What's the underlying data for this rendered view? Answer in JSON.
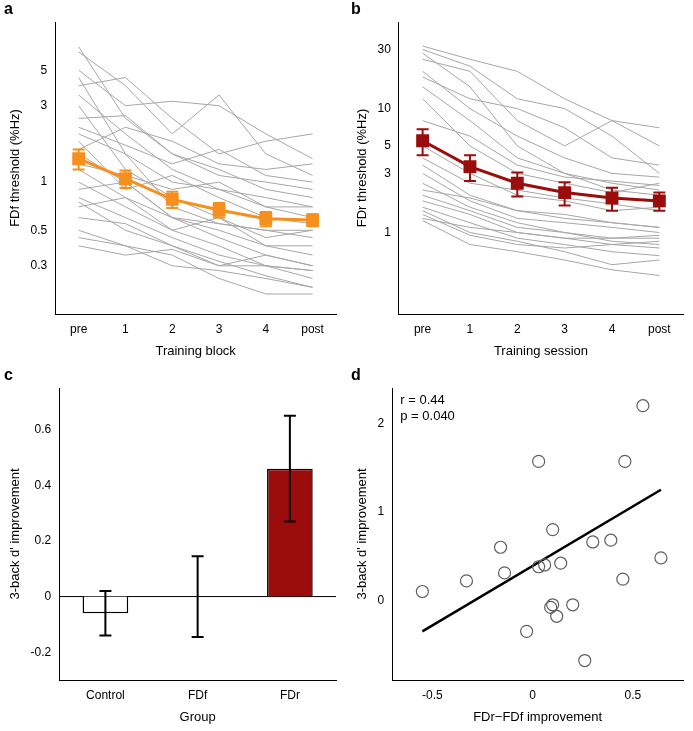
{
  "chart_data": [
    {
      "panel_label": "a",
      "type": "line",
      "x_label": "Training block",
      "y_label": "FDf threshold (%Hz)",
      "categories": [
        "pre",
        "1",
        "2",
        "3",
        "4",
        "post"
      ],
      "log": "y",
      "grid": false,
      "ylim": [
        0.15,
        10
      ],
      "yticks": [
        0.3,
        0.5,
        1,
        3,
        5
      ],
      "series": [
        {
          "color": "#a6a6a6",
          "values": [
            7.0,
            2.5,
            1.5,
            1.2,
            0.9,
            0.8
          ]
        },
        {
          "color": "#a6a6a6",
          "values": [
            6.5,
            4.0,
            2.0,
            3.5,
            1.5,
            1.1
          ]
        },
        {
          "color": "#a6a6a6",
          "values": [
            5.0,
            3.0,
            3.2,
            3.0,
            2.0,
            1.4
          ]
        },
        {
          "color": "#a6a6a6",
          "values": [
            4.5,
            1.5,
            1.0,
            0.9,
            0.7,
            0.6
          ]
        },
        {
          "color": "#a6a6a6",
          "values": [
            4.0,
            4.5,
            2.5,
            1.5,
            1.8,
            2.0
          ]
        },
        {
          "color": "#a6a6a6",
          "values": [
            3.5,
            2.0,
            1.2,
            0.9,
            0.8,
            0.7
          ]
        },
        {
          "color": "#a6a6a6",
          "values": [
            3.0,
            1.2,
            0.8,
            0.6,
            0.45,
            0.5
          ]
        },
        {
          "color": "#a6a6a6",
          "values": [
            2.5,
            2.6,
            1.5,
            1.1,
            1.0,
            0.9
          ]
        },
        {
          "color": "#a6a6a6",
          "values": [
            2.2,
            1.7,
            1.3,
            1.6,
            1.1,
            1.0
          ]
        },
        {
          "color": "#a6a6a6",
          "values": [
            2.0,
            1.5,
            0.7,
            0.55,
            0.5,
            0.45
          ]
        },
        {
          "color": "#a6a6a6",
          "values": [
            1.8,
            0.9,
            1.1,
            0.8,
            0.6,
            0.55
          ]
        },
        {
          "color": "#a6a6a6",
          "values": [
            1.6,
            2.2,
            1.8,
            1.3,
            1.2,
            1.3
          ]
        },
        {
          "color": "#a6a6a6",
          "values": [
            1.5,
            1.0,
            0.6,
            0.5,
            0.4,
            0.35
          ]
        },
        {
          "color": "#a6a6a6",
          "values": [
            1.3,
            1.1,
            0.9,
            1.0,
            0.7,
            0.7
          ]
        },
        {
          "color": "#a6a6a6",
          "values": [
            1.2,
            0.8,
            0.6,
            0.45,
            0.35,
            0.3
          ]
        },
        {
          "color": "#a6a6a6",
          "values": [
            1.0,
            0.7,
            0.5,
            0.4,
            0.3,
            0.28
          ]
        },
        {
          "color": "#a6a6a6",
          "values": [
            0.9,
            1.0,
            0.6,
            0.55,
            0.5,
            0.5
          ]
        },
        {
          "color": "#a6a6a6",
          "values": [
            0.8,
            0.6,
            0.45,
            0.35,
            0.3,
            0.25
          ]
        },
        {
          "color": "#a6a6a6",
          "values": [
            0.75,
            0.5,
            0.4,
            0.32,
            0.26,
            0.22
          ]
        },
        {
          "color": "#a6a6a6",
          "values": [
            0.7,
            0.8,
            0.5,
            0.6,
            0.4,
            0.4
          ]
        },
        {
          "color": "#a6a6a6",
          "values": [
            0.6,
            0.55,
            0.4,
            0.3,
            0.35,
            0.3
          ]
        },
        {
          "color": "#a6a6a6",
          "values": [
            0.5,
            0.4,
            0.35,
            0.25,
            0.2,
            0.2
          ]
        },
        {
          "color": "#a6a6a6",
          "values": [
            0.45,
            0.4,
            0.3,
            0.28,
            0.25,
            0.22
          ]
        },
        {
          "color": "#a6a6a6",
          "values": [
            0.4,
            0.35,
            0.38,
            0.3,
            0.3,
            0.28
          ]
        },
        {
          "color": "#f5901e",
          "marker": "square",
          "values": [
            1.4,
            1.05,
            0.78,
            0.67,
            0.59,
            0.58
          ],
          "error": [
            0.2,
            0.13,
            0.09,
            0.07,
            0.06,
            0.05
          ]
        }
      ]
    },
    {
      "panel_label": "b",
      "type": "line",
      "x_label": "Training session",
      "y_label": "FDr threshold (%Hz)",
      "categories": [
        "pre",
        "1",
        "2",
        "3",
        "4",
        "post"
      ],
      "log": "y",
      "grid": false,
      "ylim": [
        0.22,
        50
      ],
      "yticks": [
        1,
        3,
        5,
        10,
        30
      ],
      "series": [
        {
          "color": "#a6a6a6",
          "values": [
            32,
            25,
            20,
            12,
            8,
            5
          ]
        },
        {
          "color": "#a6a6a6",
          "values": [
            30,
            22,
            12,
            10,
            6,
            3
          ]
        },
        {
          "color": "#a6a6a6",
          "values": [
            28,
            15,
            5,
            3,
            2.5,
            2.2
          ]
        },
        {
          "color": "#a6a6a6",
          "values": [
            25,
            20,
            8,
            5,
            8,
            7
          ]
        },
        {
          "color": "#a6a6a6",
          "values": [
            20,
            10,
            6,
            4,
            3,
            2.8
          ]
        },
        {
          "color": "#a6a6a6",
          "values": [
            18,
            12,
            10,
            7,
            4,
            3.5
          ]
        },
        {
          "color": "#a6a6a6",
          "values": [
            15,
            8,
            4,
            3,
            2.2,
            2
          ]
        },
        {
          "color": "#a6a6a6",
          "values": [
            12,
            5,
            3,
            2.5,
            2.1,
            2.5
          ]
        },
        {
          "color": "#a6a6a6",
          "values": [
            8,
            6,
            3.5,
            2.8,
            2.6,
            2.4
          ]
        },
        {
          "color": "#a6a6a6",
          "values": [
            5,
            3,
            2,
            1.8,
            1.5,
            1.6
          ]
        },
        {
          "color": "#a6a6a6",
          "values": [
            4,
            2.5,
            2.2,
            1.9,
            1.7,
            1.5
          ]
        },
        {
          "color": "#a6a6a6",
          "values": [
            3.5,
            2,
            1.5,
            1.4,
            1.2,
            1.1
          ]
        },
        {
          "color": "#a6a6a6",
          "values": [
            3,
            1.8,
            1.3,
            1.2,
            1.1,
            1.0
          ]
        },
        {
          "color": "#a6a6a6",
          "values": [
            2.5,
            1.6,
            1.2,
            1.0,
            0.9,
            0.95
          ]
        },
        {
          "color": "#a6a6a6",
          "values": [
            2.2,
            1.9,
            1.5,
            1.3,
            1.2,
            1.1
          ]
        },
        {
          "color": "#a6a6a6",
          "values": [
            2,
            1.5,
            1.1,
            1.0,
            0.85,
            0.8
          ]
        },
        {
          "color": "#a6a6a6",
          "values": [
            1.8,
            1.4,
            1.0,
            0.9,
            0.8,
            0.75
          ]
        },
        {
          "color": "#a6a6a6",
          "values": [
            1.6,
            1.2,
            0.9,
            0.8,
            0.7,
            0.65
          ]
        },
        {
          "color": "#a6a6a6",
          "values": [
            1.5,
            1.0,
            0.85,
            0.7,
            0.55,
            0.6
          ]
        },
        {
          "color": "#a6a6a6",
          "values": [
            1.4,
            0.95,
            0.8,
            0.75,
            0.8,
            0.85
          ]
        },
        {
          "color": "#a6a6a6",
          "values": [
            1.3,
            1.1,
            1.0,
            0.9,
            0.9,
            0.9
          ]
        },
        {
          "color": "#a6a6a6",
          "values": [
            1.25,
            0.8,
            0.7,
            0.6,
            0.5,
            0.45
          ]
        },
        {
          "color": "#9b0d0d",
          "marker": "square",
          "values": [
            5.5,
            3.4,
            2.5,
            2.1,
            1.9,
            1.8
          ],
          "error": [
            1.3,
            0.8,
            0.55,
            0.45,
            0.4,
            0.3
          ]
        }
      ]
    },
    {
      "panel_label": "c",
      "type": "bar",
      "x_label": "Group",
      "y_label": "3-back d' improvement",
      "categories": [
        "Control",
        "FDf",
        "FDr"
      ],
      "values": [
        -0.06,
        0.0,
        0.46
      ],
      "error": [
        0.08,
        0.145,
        0.19
      ],
      "colors": [
        "#ffffff",
        "#ffffff",
        "#9b0d0d"
      ],
      "grid": false,
      "ylim": [
        -0.3,
        0.75
      ],
      "yticks": [
        -0.2,
        0,
        0.2,
        0.4,
        0.6
      ]
    },
    {
      "panel_label": "d",
      "type": "scatter",
      "x_label": "FDr−FDf improvement",
      "y_label": "3-back d' improvement",
      "annotations": [
        "r = 0.44",
        "p = 0.040"
      ],
      "grid": false,
      "xlim": [
        -0.7,
        0.75
      ],
      "xticks": [
        -0.5,
        0,
        0.5
      ],
      "ylim": [
        -0.9,
        2.4
      ],
      "yticks": [
        0,
        1,
        2
      ],
      "series": [
        {
          "type": "scatter",
          "marker": "circle",
          "color": "#606060",
          "x": [
            -0.55,
            -0.33,
            -0.14,
            -0.16,
            -0.03,
            0.03,
            0.03,
            0.06,
            0.09,
            0.1,
            0.1,
            0.12,
            0.14,
            0.2,
            0.26,
            0.3,
            0.39,
            0.45,
            0.46,
            0.55,
            0.64
          ],
          "values": [
            0.1,
            0.22,
            0.31,
            0.6,
            -0.35,
            1.57,
            0.38,
            0.4,
            -0.08,
            0.8,
            -0.05,
            -0.18,
            0.42,
            -0.05,
            -0.68,
            0.66,
            0.68,
            0.24,
            1.57,
            2.2,
            0.48
          ]
        },
        {
          "type": "line",
          "color": "#000000",
          "x": [
            -0.55,
            0.64
          ],
          "values": [
            -0.35,
            1.25
          ]
        }
      ]
    }
  ]
}
